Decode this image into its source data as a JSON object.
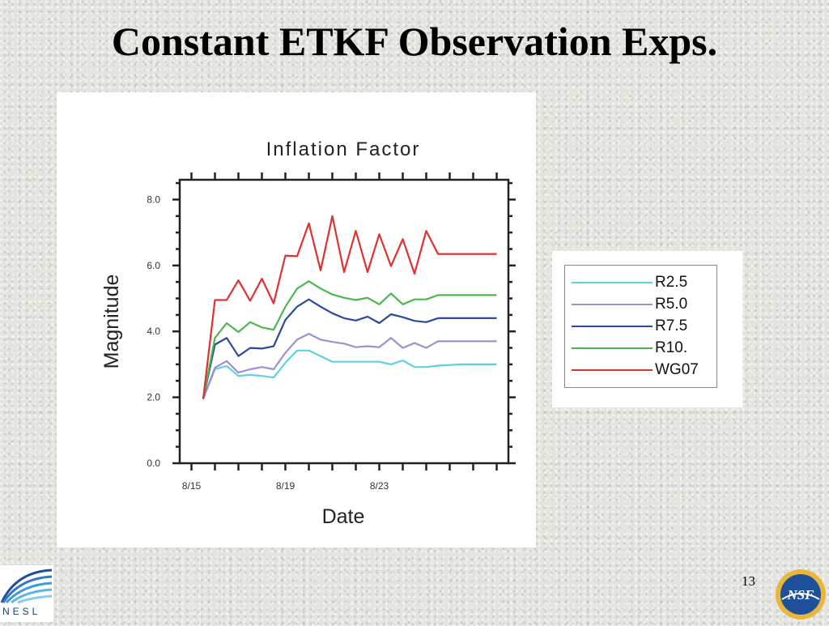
{
  "slide": {
    "title": "Constant ETKF Observation Exps.",
    "page_number": "13",
    "left_logo_text": "NESL",
    "right_logo_text": "NSF"
  },
  "chart_data": {
    "type": "line",
    "title": "Inflation Factor",
    "xlabel": "Date",
    "ylabel": "Magnitude",
    "x": [
      0.5,
      1,
      1.5,
      2,
      2.5,
      3,
      3.5,
      4,
      4.5,
      5,
      5.5,
      6,
      6.5,
      7,
      7.5,
      8,
      8.5,
      9,
      9.5,
      10,
      10.5,
      11,
      11.5,
      12,
      12.5,
      13
    ],
    "xticks": [
      0,
      4,
      8
    ],
    "xticklabels": [
      "8/15",
      "8/19",
      "8/23"
    ],
    "xlim": [
      -0.5,
      13.5
    ],
    "ylim": [
      0,
      8.6
    ],
    "yticks": [
      0,
      2,
      4,
      6,
      8
    ],
    "yticklabels": [
      "0.0",
      "2.0",
      "4.0",
      "6.0",
      "8.0"
    ],
    "grid": false,
    "legend_position": "right-outside",
    "series": [
      {
        "name": "R2.5",
        "color": "#5fd0e0",
        "values": [
          1.95,
          2.85,
          2.95,
          2.65,
          2.68,
          2.65,
          2.6,
          3.05,
          3.42,
          3.42,
          3.25,
          3.08,
          3.08,
          3.08,
          3.08,
          3.08,
          3.0,
          3.12,
          2.92,
          2.92,
          2.96,
          2.98,
          3.0,
          3.0,
          3.0,
          3.0
        ]
      },
      {
        "name": "R5.0",
        "color": "#9f8fd0",
        "values": [
          1.95,
          2.9,
          3.1,
          2.75,
          2.85,
          2.92,
          2.85,
          3.35,
          3.75,
          3.93,
          3.75,
          3.68,
          3.63,
          3.52,
          3.55,
          3.52,
          3.8,
          3.5,
          3.65,
          3.5,
          3.7,
          3.7,
          3.7,
          3.7,
          3.7,
          3.7
        ]
      },
      {
        "name": "R7.5",
        "color": "#2a4aa0",
        "values": [
          1.95,
          3.6,
          3.8,
          3.25,
          3.5,
          3.48,
          3.55,
          4.35,
          4.75,
          4.97,
          4.75,
          4.55,
          4.4,
          4.33,
          4.45,
          4.25,
          4.52,
          4.43,
          4.32,
          4.28,
          4.4,
          4.4,
          4.4,
          4.4,
          4.4,
          4.4
        ]
      },
      {
        "name": "R10.",
        "color": "#4ab84a",
        "values": [
          1.95,
          3.8,
          4.25,
          3.98,
          4.28,
          4.12,
          4.05,
          4.75,
          5.3,
          5.52,
          5.3,
          5.12,
          5.02,
          4.95,
          5.02,
          4.82,
          5.15,
          4.82,
          4.97,
          4.97,
          5.1,
          5.1,
          5.1,
          5.1,
          5.1,
          5.1
        ]
      },
      {
        "name": "WG07",
        "color": "#e03030",
        "values": [
          1.95,
          4.95,
          4.95,
          5.55,
          4.93,
          5.6,
          4.85,
          6.3,
          6.28,
          7.28,
          5.85,
          7.5,
          5.8,
          7.05,
          5.8,
          6.95,
          5.98,
          6.8,
          5.75,
          7.05,
          6.35,
          6.35,
          6.35,
          6.35,
          6.35,
          6.35
        ]
      }
    ]
  }
}
